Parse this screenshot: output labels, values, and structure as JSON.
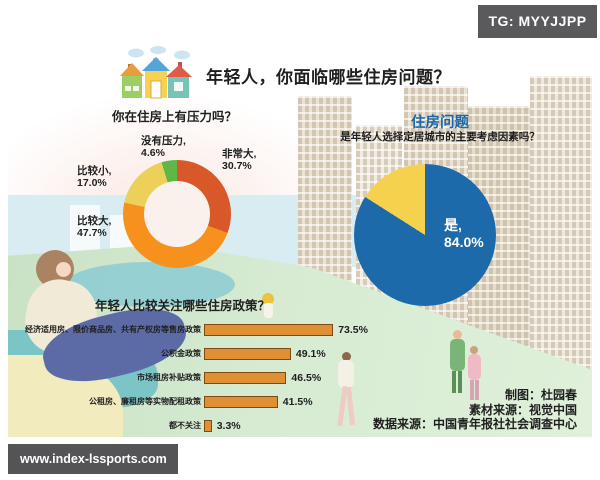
{
  "page": {
    "badge": "TG: MYYJJPP",
    "watermark": "www.index-lssports.com"
  },
  "header": {
    "icon": "houses-icon",
    "title": "年轻人，你面临哪些住房问题？"
  },
  "credits": {
    "line1": "制图：杜园春",
    "line2": "素材来源：视觉中国",
    "line3": "数据来源：中国青年报社社会调查中心"
  },
  "chart_data": [
    {
      "id": "housing-pressure-donut",
      "type": "pie",
      "subtype": "donut",
      "title": "你在住房上有压力吗？",
      "categories": [
        "非常大",
        "比较大",
        "比较小",
        "没有压力"
      ],
      "values": [
        30.7,
        47.7,
        17.0,
        4.6
      ],
      "unit": "%",
      "colors": [
        "#d8582a",
        "#f6911e",
        "#ecd05a",
        "#5fb746"
      ],
      "hole_color": "#fbf1ec",
      "labels": [
        {
          "name": "非常大,",
          "value": "30.7%"
        },
        {
          "name": "比较大,",
          "value": "47.7%"
        },
        {
          "name": "比较小,",
          "value": "17.0%"
        },
        {
          "name": "没有压力,",
          "value": "4.6%"
        }
      ],
      "legend": "off"
    },
    {
      "id": "city-settle-factor-pie",
      "type": "pie",
      "title_highlight": "住房问题",
      "title": "是年轻人选择定居城市的主要考虑因素吗？",
      "categories": [
        "是",
        ""
      ],
      "values": [
        84.0,
        16.0
      ],
      "unit": "%",
      "colors": [
        "#1c6aa9",
        "#f6d14e"
      ],
      "inside_label": {
        "name": "是,",
        "value": "84.0%"
      },
      "legend": "off"
    },
    {
      "id": "policy-attention-bars",
      "type": "bar",
      "title": "年轻人比较关注哪些住房政策？",
      "orientation": "horizontal",
      "categories": [
        "经济适用房、限价商品房、共有产权房等售房政策",
        "公积金政策",
        "市场租房补贴政策",
        "公租房、廉租房等实物配租政策",
        "都不关注"
      ],
      "values": [
        73.5,
        49.1,
        46.5,
        41.5,
        3.3
      ],
      "value_labels": [
        "73.5%",
        "49.1%",
        "46.5%",
        "41.5%",
        "3.3%"
      ],
      "unit": "%",
      "xlim": [
        0,
        80
      ],
      "bar_color": "#e09034",
      "bar_border": "#7c4a12",
      "grid": "off"
    }
  ]
}
